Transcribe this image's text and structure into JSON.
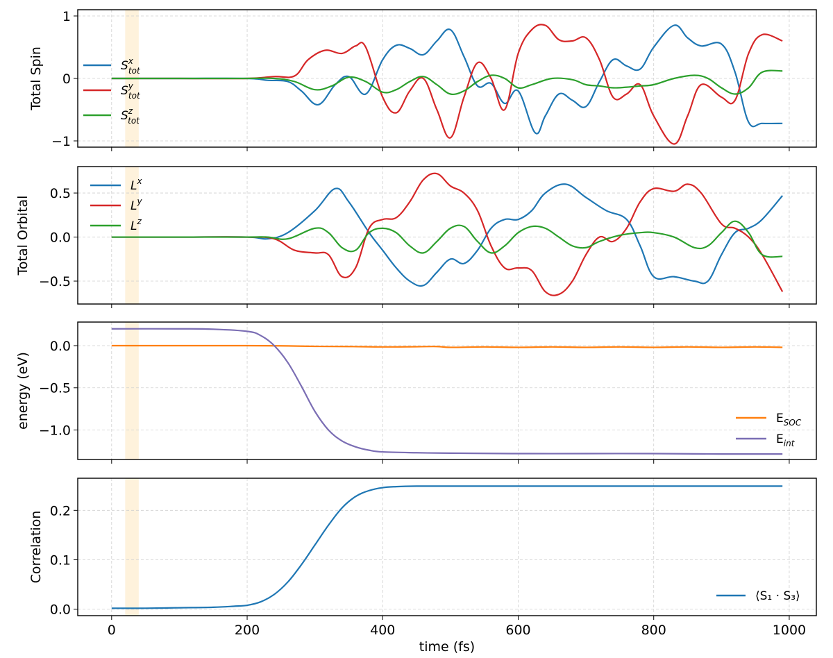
{
  "chart_data": [
    {
      "type": "line",
      "ylabel": "Total Spin",
      "xlim": [
        -50,
        1040
      ],
      "ylim": [
        -1.1,
        1.1
      ],
      "yticks": [
        -1,
        0,
        1
      ],
      "yticklabels": [
        "−1",
        "0",
        "1"
      ],
      "grid": true,
      "legend_position": "left",
      "highlight_band": [
        20,
        40
      ],
      "series": [
        {
          "name": "S^x_tot",
          "base": "S",
          "sup": "x",
          "sub": "tot",
          "color": "#1f77b4",
          "x": [
            0,
            100,
            200,
            230,
            260,
            280,
            305,
            330,
            350,
            375,
            400,
            420,
            440,
            460,
            480,
            500,
            520,
            540,
            560,
            580,
            600,
            625,
            640,
            660,
            680,
            700,
            720,
            740,
            760,
            780,
            800,
            830,
            850,
            870,
            900,
            920,
            940,
            960,
            990
          ],
          "y": [
            0,
            0,
            0,
            -0.03,
            -0.05,
            -0.2,
            -0.42,
            -0.1,
            0.03,
            -0.25,
            0.3,
            0.53,
            0.48,
            0.38,
            0.6,
            0.78,
            0.35,
            -0.12,
            -0.08,
            -0.4,
            -0.2,
            -0.87,
            -0.6,
            -0.25,
            -0.35,
            -0.45,
            -0.05,
            0.3,
            0.2,
            0.15,
            0.5,
            0.85,
            0.65,
            0.52,
            0.55,
            0.1,
            -0.7,
            -0.72,
            -0.72
          ]
        },
        {
          "name": "S^y_tot",
          "base": "S",
          "sup": "y",
          "sub": "tot",
          "color": "#d62728",
          "x": [
            0,
            100,
            200,
            240,
            270,
            290,
            315,
            340,
            360,
            375,
            400,
            420,
            440,
            460,
            480,
            500,
            520,
            540,
            560,
            580,
            600,
            620,
            640,
            660,
            680,
            700,
            720,
            740,
            760,
            780,
            800,
            830,
            850,
            870,
            900,
            920,
            940,
            960,
            990
          ],
          "y": [
            0,
            0,
            0,
            0.03,
            0.04,
            0.3,
            0.45,
            0.4,
            0.52,
            0.5,
            -0.3,
            -0.55,
            -0.2,
            0.0,
            -0.5,
            -0.95,
            -0.3,
            0.25,
            0.0,
            -0.5,
            0.4,
            0.78,
            0.85,
            0.62,
            0.6,
            0.65,
            0.3,
            -0.3,
            -0.25,
            -0.1,
            -0.6,
            -1.05,
            -0.6,
            -0.1,
            -0.3,
            -0.35,
            0.4,
            0.7,
            0.6
          ]
        },
        {
          "name": "S^z_tot",
          "base": "S",
          "sup": "z",
          "sub": "tot",
          "color": "#2ca02c",
          "x": [
            0,
            100,
            200,
            240,
            270,
            300,
            325,
            350,
            375,
            400,
            420,
            440,
            460,
            480,
            500,
            520,
            540,
            560,
            580,
            600,
            620,
            650,
            680,
            700,
            720,
            740,
            760,
            780,
            800,
            830,
            860,
            880,
            900,
            920,
            940,
            960,
            990
          ],
          "y": [
            0,
            0,
            0,
            0,
            -0.05,
            -0.18,
            -0.12,
            0.02,
            -0.05,
            -0.22,
            -0.18,
            -0.05,
            0.03,
            -0.1,
            -0.25,
            -0.2,
            -0.05,
            0.05,
            0.0,
            -0.15,
            -0.1,
            0.0,
            -0.02,
            -0.1,
            -0.12,
            -0.15,
            -0.14,
            -0.12,
            -0.1,
            0.0,
            0.05,
            0.0,
            -0.15,
            -0.25,
            -0.15,
            0.1,
            0.12
          ]
        }
      ]
    },
    {
      "type": "line",
      "ylabel": "Total Orbital",
      "xlim": [
        -50,
        1040
      ],
      "ylim": [
        -0.76,
        0.8
      ],
      "yticks": [
        -0.5,
        0,
        0.5
      ],
      "yticklabels": [
        "−0.5",
        "0.0",
        "0.5"
      ],
      "grid": true,
      "legend_position": "top-left",
      "highlight_band": [
        20,
        40
      ],
      "series": [
        {
          "name": "L^x",
          "base": "L",
          "sup": "x",
          "sub": "",
          "color": "#1f77b4",
          "x": [
            0,
            100,
            200,
            230,
            260,
            300,
            330,
            350,
            380,
            400,
            420,
            440,
            460,
            480,
            500,
            520,
            540,
            560,
            580,
            600,
            620,
            640,
            670,
            700,
            730,
            760,
            780,
            800,
            830,
            860,
            880,
            900,
            920,
            940,
            960,
            990
          ],
          "y": [
            0,
            0,
            0,
            -0.02,
            0.05,
            0.3,
            0.55,
            0.4,
            0.05,
            -0.15,
            -0.35,
            -0.5,
            -0.55,
            -0.4,
            -0.25,
            -0.3,
            -0.15,
            0.1,
            0.2,
            0.2,
            0.3,
            0.5,
            0.6,
            0.45,
            0.3,
            0.2,
            -0.1,
            -0.45,
            -0.45,
            -0.5,
            -0.5,
            -0.2,
            0.05,
            0.1,
            0.2,
            0.47
          ]
        },
        {
          "name": "L^y",
          "base": "L",
          "sup": "y",
          "sub": "",
          "color": "#d62728",
          "x": [
            0,
            100,
            200,
            240,
            270,
            300,
            320,
            340,
            360,
            380,
            400,
            420,
            440,
            460,
            480,
            500,
            520,
            540,
            560,
            580,
            600,
            620,
            640,
            660,
            680,
            700,
            720,
            740,
            760,
            780,
            800,
            830,
            850,
            870,
            900,
            920,
            940,
            960,
            990
          ],
          "y": [
            0,
            0,
            0,
            -0.02,
            -0.15,
            -0.18,
            -0.2,
            -0.45,
            -0.35,
            0.1,
            0.2,
            0.22,
            0.4,
            0.65,
            0.72,
            0.58,
            0.5,
            0.3,
            -0.1,
            -0.35,
            -0.35,
            -0.38,
            -0.62,
            -0.65,
            -0.5,
            -0.2,
            0.0,
            -0.05,
            0.1,
            0.4,
            0.55,
            0.52,
            0.6,
            0.5,
            0.15,
            0.1,
            0.0,
            -0.2,
            -0.62
          ]
        },
        {
          "name": "L^z",
          "base": "L",
          "sup": "z",
          "sub": "",
          "color": "#2ca02c",
          "x": [
            0,
            100,
            200,
            230,
            260,
            300,
            320,
            340,
            360,
            380,
            400,
            420,
            440,
            460,
            480,
            500,
            520,
            540,
            560,
            580,
            600,
            620,
            640,
            660,
            680,
            700,
            720,
            750,
            780,
            800,
            830,
            860,
            880,
            900,
            920,
            940,
            960,
            990
          ],
          "y": [
            0,
            0,
            0,
            0,
            -0.02,
            0.1,
            0.05,
            -0.12,
            -0.15,
            0.05,
            0.1,
            0.05,
            -0.1,
            -0.18,
            -0.05,
            0.1,
            0.12,
            -0.05,
            -0.18,
            -0.1,
            0.05,
            0.12,
            0.1,
            0.0,
            -0.1,
            -0.12,
            -0.05,
            0.02,
            0.05,
            0.05,
            0.0,
            -0.12,
            -0.1,
            0.05,
            0.18,
            0.05,
            -0.2,
            -0.22
          ]
        }
      ]
    },
    {
      "type": "line",
      "ylabel": "energy (eV)",
      "xlim": [
        -50,
        1040
      ],
      "ylim": [
        -1.35,
        0.28
      ],
      "yticks": [
        -1,
        -0.5,
        0
      ],
      "yticklabels": [
        "−1.0",
        "−0.5",
        "0.0"
      ],
      "grid": true,
      "legend_position": "bottom-right",
      "highlight_band": [
        20,
        40
      ],
      "series": [
        {
          "name": "E_SOC",
          "base": "E",
          "sup": "",
          "sub": "SOC",
          "color": "#ff7f0e",
          "x": [
            0,
            100,
            200,
            260,
            300,
            350,
            400,
            450,
            480,
            500,
            550,
            600,
            650,
            700,
            750,
            800,
            850,
            900,
            950,
            990
          ],
          "y": [
            0,
            0,
            0,
            -0.003,
            -0.008,
            -0.01,
            -0.015,
            -0.012,
            -0.01,
            -0.02,
            -0.015,
            -0.02,
            -0.015,
            -0.02,
            -0.015,
            -0.02,
            -0.015,
            -0.02,
            -0.015,
            -0.02
          ]
        },
        {
          "name": "E_int",
          "base": "E",
          "sup": "",
          "sub": "int",
          "color": "#7b6eb4",
          "x": [
            0,
            100,
            150,
            200,
            220,
            240,
            260,
            280,
            300,
            320,
            340,
            360,
            380,
            400,
            450,
            500,
            600,
            700,
            800,
            900,
            990
          ],
          "y": [
            0.2,
            0.2,
            0.195,
            0.17,
            0.12,
            0.0,
            -0.2,
            -0.48,
            -0.78,
            -1.0,
            -1.13,
            -1.2,
            -1.24,
            -1.26,
            -1.27,
            -1.275,
            -1.28,
            -1.28,
            -1.28,
            -1.285,
            -1.285
          ]
        }
      ]
    },
    {
      "type": "line",
      "ylabel": "Correlation",
      "xlabel": "time (fs)",
      "xlim": [
        -50,
        1040
      ],
      "ylim": [
        -0.013,
        0.265
      ],
      "yticks": [
        0,
        0.1,
        0.2
      ],
      "yticklabels": [
        "0.0",
        "0.1",
        "0.2"
      ],
      "xticks": [
        0,
        200,
        400,
        600,
        800,
        1000
      ],
      "xticklabels": [
        "0",
        "200",
        "400",
        "600",
        "800",
        "1000"
      ],
      "grid": true,
      "legend_position": "bottom-right",
      "highlight_band": [
        20,
        40
      ],
      "series": [
        {
          "name": "⟨S₁ · S₃⟩",
          "base": "⟨S₁ · S₃⟩",
          "sup": "",
          "sub": "",
          "color": "#1f77b4",
          "x": [
            0,
            50,
            100,
            150,
            180,
            200,
            220,
            240,
            260,
            280,
            300,
            320,
            340,
            360,
            380,
            400,
            420,
            450,
            500,
            600,
            700,
            800,
            900,
            990
          ],
          "y": [
            0.002,
            0.002,
            0.003,
            0.004,
            0.006,
            0.008,
            0.015,
            0.03,
            0.055,
            0.09,
            0.13,
            0.17,
            0.205,
            0.228,
            0.24,
            0.246,
            0.248,
            0.249,
            0.249,
            0.249,
            0.249,
            0.249,
            0.249,
            0.249
          ]
        }
      ]
    }
  ]
}
